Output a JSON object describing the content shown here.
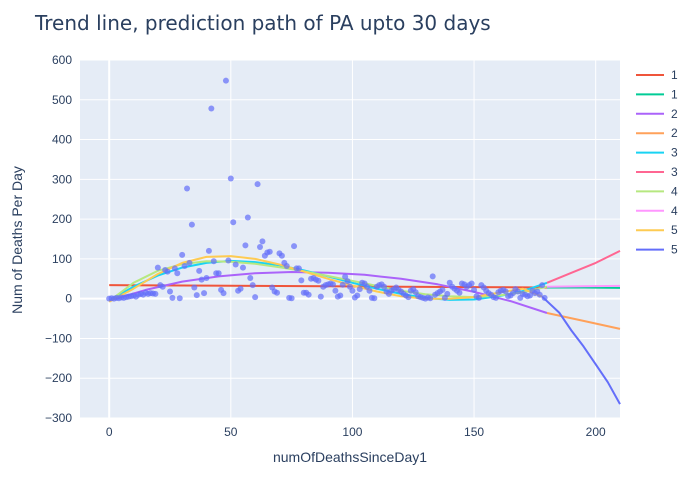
{
  "chart_data": {
    "type": "scatter",
    "title": "Trend line, prediction path of PA upto 30 days",
    "xlabel": "numOfDeathsSinceDay1",
    "ylabel": "Num of Deaths Per Day",
    "xlim": [
      -12,
      210
    ],
    "ylim": [
      -300,
      600
    ],
    "x_ticks": [
      0,
      50,
      100,
      150,
      200
    ],
    "y_ticks": [
      -300,
      -200,
      -100,
      0,
      100,
      200,
      300,
      400,
      500,
      600
    ],
    "x_tick_labels": [
      "0",
      "50",
      "100",
      "150",
      "200"
    ],
    "y_tick_labels": [
      "−300",
      "−200",
      "−100",
      "0",
      "100",
      "200",
      "300",
      "400",
      "500",
      "600"
    ],
    "grid": true,
    "legend_position": "right",
    "colors": {
      "plot_bg": "#e5ecf6",
      "grid": "#ffffff",
      "text": "#2a3f5f",
      "scatter": "#636efa"
    },
    "scatter": {
      "color": "#636efa",
      "points": [
        [
          0,
          0
        ],
        [
          1,
          1
        ],
        [
          2,
          0
        ],
        [
          3,
          2
        ],
        [
          4,
          1
        ],
        [
          5,
          3
        ],
        [
          6,
          2
        ],
        [
          7,
          4
        ],
        [
          8,
          5
        ],
        [
          9,
          6
        ],
        [
          10,
          8
        ],
        [
          11,
          5
        ],
        [
          12,
          10
        ],
        [
          13,
          12
        ],
        [
          14,
          10
        ],
        [
          15,
          15
        ],
        [
          16,
          12
        ],
        [
          17,
          14
        ],
        [
          18,
          13
        ],
        [
          19,
          12
        ],
        [
          20,
          78
        ],
        [
          21,
          34
        ],
        [
          22,
          30
        ],
        [
          23,
          72
        ],
        [
          24,
          68
        ],
        [
          25,
          18
        ],
        [
          26,
          2
        ],
        [
          27,
          76
        ],
        [
          28,
          64
        ],
        [
          29,
          1
        ],
        [
          30,
          110
        ],
        [
          31,
          82
        ],
        [
          32,
          277
        ],
        [
          33,
          90
        ],
        [
          34,
          186
        ],
        [
          35,
          28
        ],
        [
          36,
          9
        ],
        [
          37,
          70
        ],
        [
          38,
          48
        ],
        [
          39,
          14
        ],
        [
          40,
          52
        ],
        [
          41,
          120
        ],
        [
          42,
          478
        ],
        [
          43,
          94
        ],
        [
          44,
          64
        ],
        [
          45,
          64
        ],
        [
          46,
          22
        ],
        [
          47,
          14
        ],
        [
          48,
          548
        ],
        [
          49,
          96
        ],
        [
          50,
          302
        ],
        [
          51,
          192
        ],
        [
          52,
          86
        ],
        [
          53,
          20
        ],
        [
          54,
          25
        ],
        [
          55,
          78
        ],
        [
          56,
          134
        ],
        [
          57,
          204
        ],
        [
          58,
          52
        ],
        [
          59,
          34
        ],
        [
          60,
          4
        ],
        [
          61,
          288
        ],
        [
          62,
          130
        ],
        [
          63,
          144
        ],
        [
          64,
          108
        ],
        [
          65,
          116
        ],
        [
          66,
          118
        ],
        [
          67,
          28
        ],
        [
          68,
          18
        ],
        [
          69,
          15
        ],
        [
          70,
          114
        ],
        [
          71,
          108
        ],
        [
          72,
          90
        ],
        [
          73,
          82
        ],
        [
          74,
          2
        ],
        [
          75,
          1
        ],
        [
          76,
          132
        ],
        [
          77,
          76
        ],
        [
          78,
          76
        ],
        [
          79,
          46
        ],
        [
          80,
          15
        ],
        [
          81,
          15
        ],
        [
          82,
          10
        ],
        [
          83,
          50
        ],
        [
          84,
          52
        ],
        [
          85,
          48
        ],
        [
          86,
          45
        ],
        [
          87,
          5
        ],
        [
          88,
          30
        ],
        [
          89,
          34
        ],
        [
          90,
          36
        ],
        [
          91,
          38
        ],
        [
          92,
          36
        ],
        [
          93,
          20
        ],
        [
          94,
          5
        ],
        [
          95,
          8
        ],
        [
          96,
          35
        ],
        [
          97,
          55
        ],
        [
          98,
          44
        ],
        [
          99,
          30
        ],
        [
          100,
          20
        ],
        [
          101,
          3
        ],
        [
          102,
          8
        ],
        [
          103,
          24
        ],
        [
          104,
          40
        ],
        [
          105,
          38
        ],
        [
          106,
          30
        ],
        [
          107,
          20
        ],
        [
          108,
          2
        ],
        [
          109,
          1
        ],
        [
          110,
          30
        ],
        [
          111,
          34
        ],
        [
          112,
          36
        ],
        [
          113,
          30
        ],
        [
          114,
          18
        ],
        [
          115,
          12
        ],
        [
          116,
          20
        ],
        [
          117,
          24
        ],
        [
          118,
          28
        ],
        [
          119,
          22
        ],
        [
          120,
          18
        ],
        [
          121,
          12
        ],
        [
          122,
          8
        ],
        [
          123,
          4
        ],
        [
          124,
          20
        ],
        [
          125,
          24
        ],
        [
          126,
          16
        ],
        [
          127,
          6
        ],
        [
          128,
          4
        ],
        [
          129,
          2
        ],
        [
          130,
          0
        ],
        [
          131,
          3
        ],
        [
          132,
          1
        ],
        [
          133,
          56
        ],
        [
          134,
          10
        ],
        [
          135,
          14
        ],
        [
          136,
          18
        ],
        [
          137,
          22
        ],
        [
          138,
          2
        ],
        [
          139,
          12
        ],
        [
          140,
          40
        ],
        [
          141,
          30
        ],
        [
          142,
          25
        ],
        [
          143,
          20
        ],
        [
          144,
          15
        ],
        [
          145,
          38
        ],
        [
          146,
          36
        ],
        [
          147,
          30
        ],
        [
          148,
          34
        ],
        [
          149,
          38
        ],
        [
          150,
          22
        ],
        [
          151,
          6
        ],
        [
          152,
          2
        ],
        [
          153,
          34
        ],
        [
          154,
          28
        ],
        [
          155,
          20
        ],
        [
          156,
          14
        ],
        [
          157,
          10
        ],
        [
          158,
          4
        ],
        [
          159,
          2
        ],
        [
          160,
          16
        ],
        [
          161,
          20
        ],
        [
          162,
          22
        ],
        [
          163,
          18
        ],
        [
          164,
          6
        ],
        [
          165,
          8
        ],
        [
          166,
          14
        ],
        [
          167,
          24
        ],
        [
          168,
          18
        ],
        [
          169,
          2
        ],
        [
          170,
          12
        ],
        [
          171,
          10
        ],
        [
          172,
          6
        ],
        [
          173,
          8
        ],
        [
          174,
          20
        ],
        [
          175,
          14
        ],
        [
          176,
          18
        ],
        [
          177,
          10
        ],
        [
          178,
          34
        ],
        [
          179,
          2
        ]
      ]
    },
    "legend": [
      "1",
      "1",
      "2",
      "2",
      "3",
      "3",
      "4",
      "4",
      "5",
      "5"
    ],
    "series": [
      {
        "name": "1",
        "color": "#ef553b",
        "dash": false,
        "x": [
          0,
          30,
          60,
          90,
          120,
          150,
          180
        ],
        "y": [
          34,
          33,
          32,
          31,
          30,
          29,
          28
        ]
      },
      {
        "name": "1",
        "color": "#00cc96",
        "dash": false,
        "x": [
          180,
          195,
          210
        ],
        "y": [
          28,
          28,
          27
        ]
      },
      {
        "name": "2",
        "color": "#ab63fa",
        "dash": false,
        "x": [
          0,
          15,
          30,
          45,
          60,
          75,
          90,
          105,
          120,
          135,
          150,
          165,
          180
        ],
        "y": [
          -5,
          22,
          43,
          56,
          64,
          67,
          65,
          60,
          50,
          36,
          17,
          -6,
          -36
        ]
      },
      {
        "name": "2",
        "color": "#ffa15a",
        "dash": false,
        "x": [
          180,
          195,
          210
        ],
        "y": [
          -36,
          -56,
          -76
        ]
      },
      {
        "name": "3",
        "color": "#19d3f3",
        "dash": false,
        "x": [
          0,
          10,
          20,
          30,
          40,
          50,
          60,
          70,
          80,
          90,
          100,
          110,
          120,
          130,
          140,
          150,
          160,
          170,
          180
        ],
        "y": [
          -5,
          30,
          58,
          78,
          90,
          95,
          92,
          84,
          71,
          56,
          40,
          25,
          12,
          2,
          -3,
          -2,
          6,
          19,
          40
        ]
      },
      {
        "name": "3",
        "color": "#ff6692",
        "dash": false,
        "x": [
          180,
          190,
          200,
          210
        ],
        "y": [
          40,
          65,
          90,
          120
        ]
      },
      {
        "name": "4",
        "color": "#b6e880",
        "dash": false,
        "x": [
          0,
          10,
          20,
          30,
          40,
          50,
          60,
          70,
          80,
          90,
          100,
          110,
          120,
          130,
          140,
          150,
          160,
          170,
          180
        ],
        "y": [
          -6,
          40,
          70,
          87,
          94,
          93,
          88,
          79,
          69,
          57,
          45,
          32,
          20,
          11,
          6,
          4,
          8,
          16,
          30
        ]
      },
      {
        "name": "4",
        "color": "#ff97ff",
        "dash": false,
        "x": [
          180,
          195,
          210
        ],
        "y": [
          30,
          31,
          32
        ]
      },
      {
        "name": "5",
        "color": "#fecb52",
        "dash": false,
        "x": [
          0,
          10,
          20,
          30,
          40,
          50,
          60,
          70,
          80,
          90,
          100,
          110,
          120,
          130,
          140,
          150,
          160,
          170,
          178
        ],
        "y": [
          -8,
          25,
          62,
          90,
          105,
          107,
          100,
          86,
          68,
          50,
          33,
          18,
          6,
          0,
          0,
          4,
          15,
          25,
          5
        ]
      },
      {
        "name": "5",
        "color": "#636efa",
        "dash": false,
        "x": [
          178,
          185,
          190,
          195,
          200,
          205,
          210
        ],
        "y": [
          5,
          -35,
          -80,
          -120,
          -165,
          -210,
          -265
        ]
      }
    ]
  }
}
